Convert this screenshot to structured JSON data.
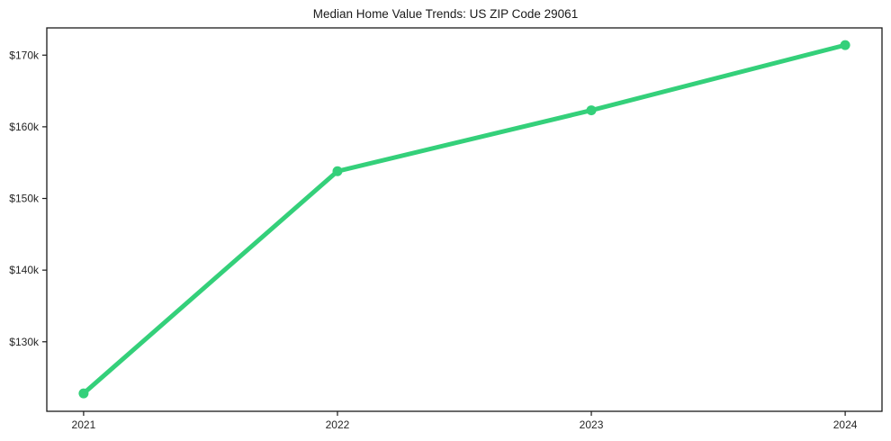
{
  "chart_data": {
    "type": "line",
    "title": "Median Home Value Trends: US ZIP Code 29061",
    "xlabel": "",
    "ylabel": "",
    "x": [
      2021,
      2022,
      2023,
      2024
    ],
    "x_tick_labels": [
      "2021",
      "2022",
      "2023",
      "2024"
    ],
    "series": [
      {
        "name": "median-home-value",
        "values": [
          122800,
          153800,
          162300,
          171400
        ],
        "color": "#34d07a",
        "marker": "circle"
      }
    ],
    "y_ticks": [
      {
        "value": 130000,
        "label": "$130k"
      },
      {
        "value": 140000,
        "label": "$140k"
      },
      {
        "value": 150000,
        "label": "$150k"
      },
      {
        "value": 160000,
        "label": "$160k"
      },
      {
        "value": 170000,
        "label": "$170k"
      }
    ],
    "ylim": [
      120300,
      173800
    ],
    "xlim": [
      2020.855,
      2024.145
    ],
    "grid": false,
    "legend_position": "none",
    "axis_color": "#1a1a1a",
    "tick_color": "#262626",
    "background": "#ffffff"
  }
}
